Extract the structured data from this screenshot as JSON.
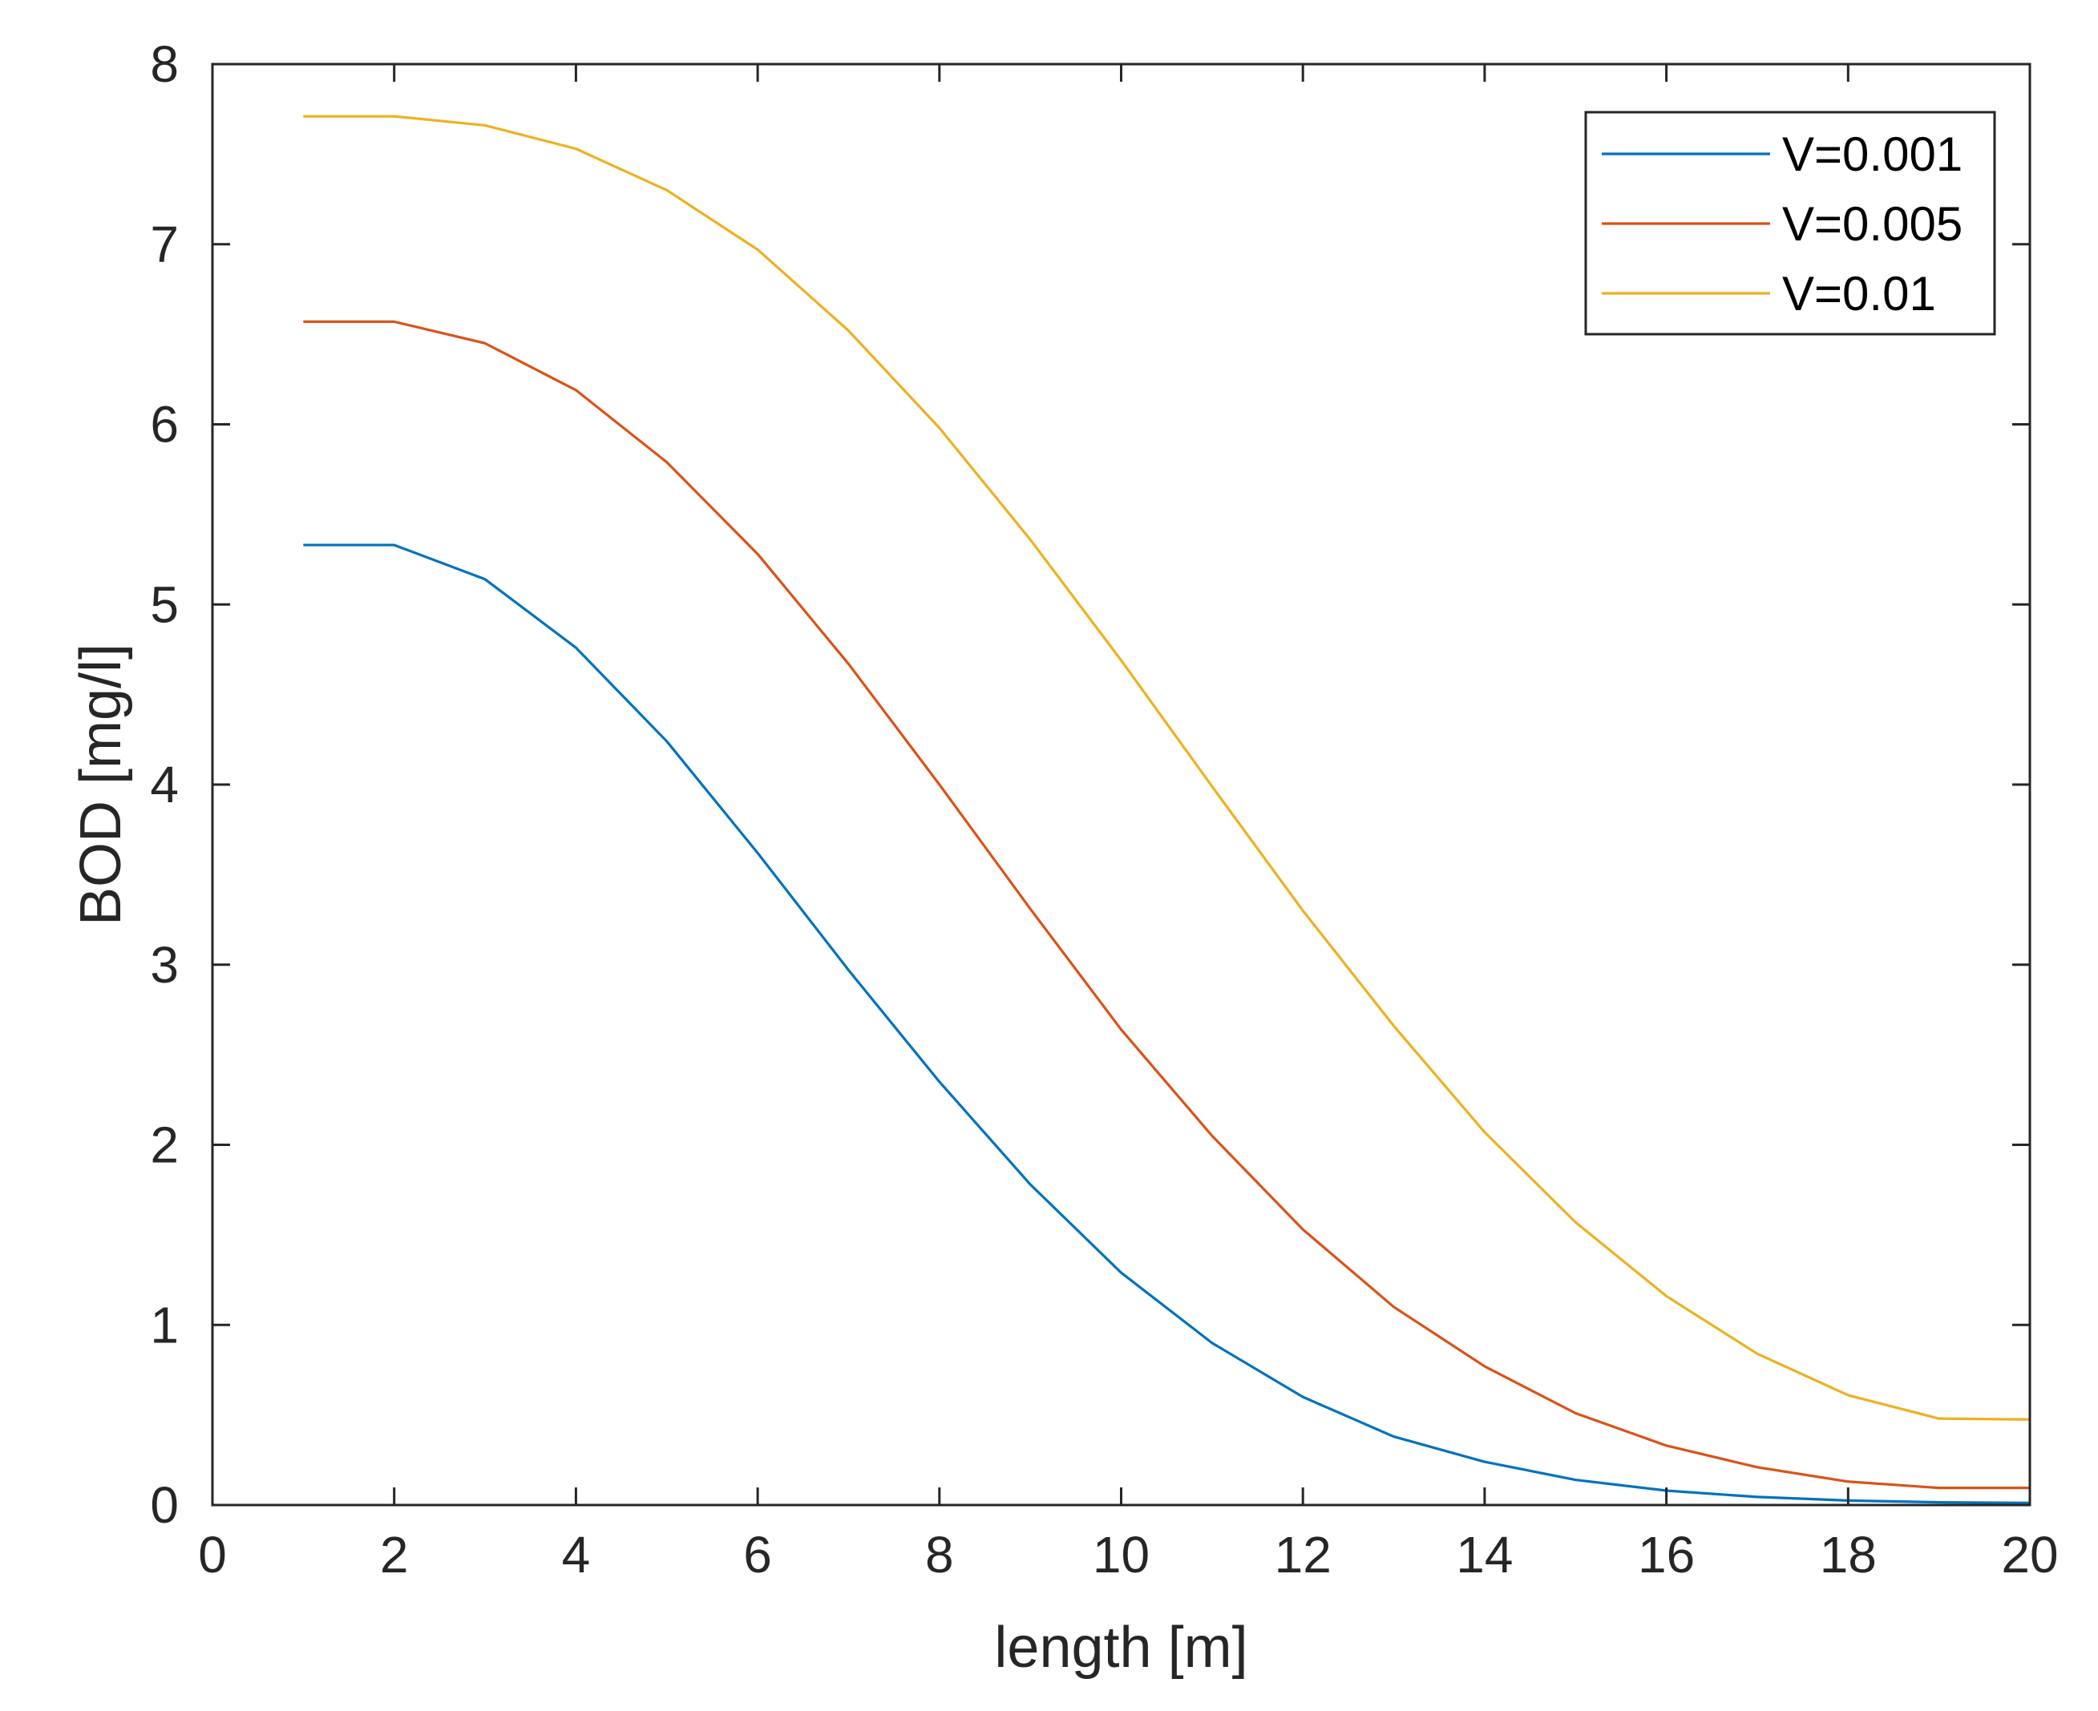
{
  "chart_data": {
    "type": "line",
    "title": "",
    "xlabel": "length [m]",
    "ylabel": "BOD [mg/l]",
    "xlim": [
      0,
      20
    ],
    "ylim": [
      0,
      8
    ],
    "xticks": [
      0,
      2,
      4,
      6,
      8,
      10,
      12,
      14,
      16,
      18,
      20
    ],
    "yticks": [
      0,
      1,
      2,
      3,
      4,
      5,
      6,
      7,
      8
    ],
    "grid": false,
    "legend_position": "top-right",
    "x": [
      1,
      2,
      3,
      4,
      5,
      6,
      7,
      8,
      9,
      10,
      11,
      12,
      13,
      14,
      15,
      16,
      17,
      18,
      19,
      20
    ],
    "series": [
      {
        "name": "V=0.001",
        "color": "#0072BD",
        "values": [
          5.33,
          5.33,
          5.14,
          4.76,
          4.24,
          3.62,
          2.97,
          2.35,
          1.78,
          1.29,
          0.9,
          0.6,
          0.38,
          0.24,
          0.14,
          0.08,
          0.045,
          0.025,
          0.015,
          0.012
        ]
      },
      {
        "name": "V=0.005",
        "color": "#D95319",
        "values": [
          6.57,
          6.57,
          6.45,
          6.19,
          5.79,
          5.28,
          4.67,
          4.0,
          3.31,
          2.64,
          2.05,
          1.53,
          1.1,
          0.77,
          0.51,
          0.33,
          0.21,
          0.13,
          0.095,
          0.095
        ]
      },
      {
        "name": "V=0.01",
        "color": "#EDB120",
        "values": [
          7.71,
          7.71,
          7.66,
          7.53,
          7.3,
          6.97,
          6.52,
          5.98,
          5.36,
          4.69,
          3.99,
          3.3,
          2.66,
          2.07,
          1.57,
          1.16,
          0.84,
          0.61,
          0.48,
          0.475
        ]
      }
    ]
  }
}
